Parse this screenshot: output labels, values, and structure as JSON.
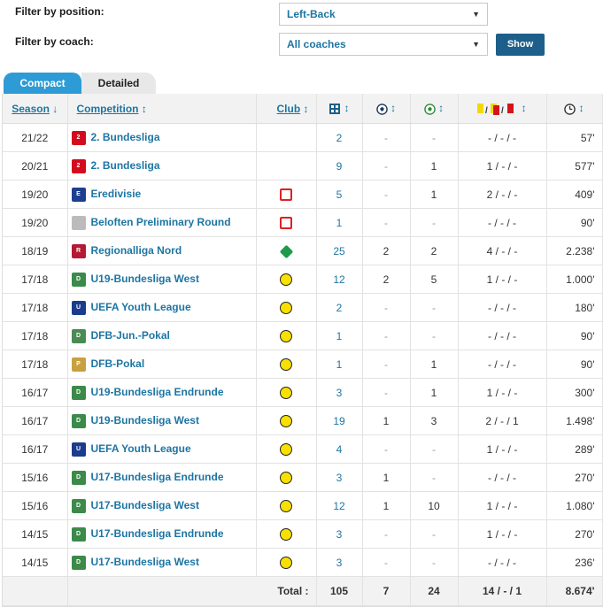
{
  "filters": {
    "position_label": "Filter by position:",
    "position_value": "Left-Back",
    "coach_label": "Filter by coach:",
    "coach_value": "All coaches",
    "show_button": "Show"
  },
  "tabs": [
    "Compact",
    "Detailed"
  ],
  "headers": {
    "season": "Season",
    "competition": "Competition",
    "club": "Club"
  },
  "rows": [
    {
      "season": "21/22",
      "competition": "2. Bundesliga",
      "comp_logo": "bundesliga2",
      "club_logo": "regensburg",
      "apps": "2",
      "goals": "-",
      "assists": "-",
      "cards": "- / - / -",
      "minutes": "57'"
    },
    {
      "season": "20/21",
      "competition": "2. Bundesliga",
      "comp_logo": "bundesliga2",
      "club_logo": "regensburg",
      "apps": "9",
      "goals": "-",
      "assists": "1",
      "cards": "1 / - / -",
      "minutes": "577'"
    },
    {
      "season": "19/20",
      "competition": "Eredivisie",
      "comp_logo": "eredivisie",
      "club_logo": "twente",
      "apps": "5",
      "goals": "-",
      "assists": "1",
      "cards": "2 / - / -",
      "minutes": "409'"
    },
    {
      "season": "19/20",
      "competition": "Beloften Preliminary Round",
      "comp_logo": "beloften",
      "club_logo": "twente",
      "apps": "1",
      "goals": "-",
      "assists": "-",
      "cards": "- / - / -",
      "minutes": "90'"
    },
    {
      "season": "18/19",
      "competition": "Regionalliga Nord",
      "comp_logo": "regionalliga",
      "club_logo": "werder",
      "apps": "25",
      "goals": "2",
      "assists": "2",
      "cards": "4 / - / -",
      "minutes": "2.238'"
    },
    {
      "season": "17/18",
      "competition": "U19-Bundesliga West",
      "comp_logo": "dfb-junior",
      "club_logo": "bvb",
      "apps": "12",
      "goals": "2",
      "assists": "5",
      "cards": "1 / - / -",
      "minutes": "1.000'"
    },
    {
      "season": "17/18",
      "competition": "UEFA Youth League",
      "comp_logo": "uefa-youth",
      "club_logo": "bvb",
      "apps": "2",
      "goals": "-",
      "assists": "-",
      "cards": "- / - / -",
      "minutes": "180'"
    },
    {
      "season": "17/18",
      "competition": "DFB-Jun.-Pokal",
      "comp_logo": "dfb-jun-pokal",
      "club_logo": "bvb",
      "apps": "1",
      "goals": "-",
      "assists": "-",
      "cards": "- / - / -",
      "minutes": "90'"
    },
    {
      "season": "17/18",
      "competition": "DFB-Pokal",
      "comp_logo": "dfb-pokal",
      "club_logo": "bvb",
      "apps": "1",
      "goals": "-",
      "assists": "1",
      "cards": "- / - / -",
      "minutes": "90'"
    },
    {
      "season": "16/17",
      "competition": "U19-Bundesliga Endrunde",
      "comp_logo": "dfb-junior",
      "club_logo": "bvb",
      "apps": "3",
      "goals": "-",
      "assists": "1",
      "cards": "1 / - / -",
      "minutes": "300'"
    },
    {
      "season": "16/17",
      "competition": "U19-Bundesliga West",
      "comp_logo": "dfb-junior",
      "club_logo": "bvb",
      "apps": "19",
      "goals": "1",
      "assists": "3",
      "cards": "2 / - / 1",
      "minutes": "1.498'"
    },
    {
      "season": "16/17",
      "competition": "UEFA Youth League",
      "comp_logo": "uefa-youth",
      "club_logo": "bvb",
      "apps": "4",
      "goals": "-",
      "assists": "-",
      "cards": "1 / - / -",
      "minutes": "289'"
    },
    {
      "season": "15/16",
      "competition": "U17-Bundesliga Endrunde",
      "comp_logo": "dfb-junior",
      "club_logo": "bvb",
      "apps": "3",
      "goals": "1",
      "assists": "-",
      "cards": "- / - / -",
      "minutes": "270'"
    },
    {
      "season": "15/16",
      "competition": "U17-Bundesliga West",
      "comp_logo": "dfb-junior",
      "club_logo": "bvb",
      "apps": "12",
      "goals": "1",
      "assists": "10",
      "cards": "1 / - / -",
      "minutes": "1.080'"
    },
    {
      "season": "14/15",
      "competition": "U17-Bundesliga Endrunde",
      "comp_logo": "dfb-junior",
      "club_logo": "bvb",
      "apps": "3",
      "goals": "-",
      "assists": "-",
      "cards": "1 / - / -",
      "minutes": "270'"
    },
    {
      "season": "14/15",
      "competition": "U17-Bundesliga West",
      "comp_logo": "dfb-junior",
      "club_logo": "bvb",
      "apps": "3",
      "goals": "-",
      "assists": "-",
      "cards": "- / - / -",
      "minutes": "236'"
    }
  ],
  "total": {
    "label": "Total :",
    "apps": "105",
    "goals": "7",
    "assists": "24",
    "cards": "14 / - / 1",
    "minutes": "8.674'"
  }
}
